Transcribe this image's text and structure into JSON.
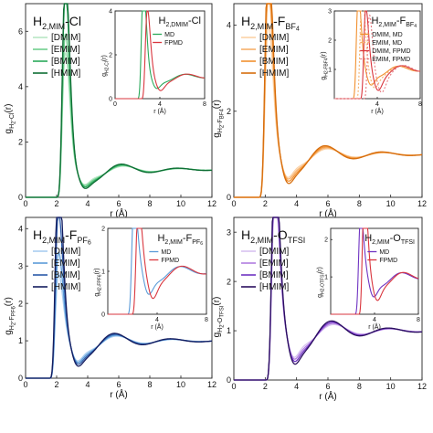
{
  "figure": {
    "panels": [
      {
        "main_title": "H2,MIM-Cl",
        "main_title_parts": [
          [
            "H",
            "",
            14
          ],
          [
            "2,MIM",
            "sub",
            9
          ],
          [
            "-Cl",
            "",
            14
          ]
        ],
        "ylabel_parts": [
          [
            "g",
            "",
            10
          ],
          [
            "H",
            "sub",
            7
          ],
          [
            "2",
            "sub2",
            6
          ],
          [
            "-Cl",
            "sub",
            7
          ],
          [
            "(r)",
            "",
            10
          ]
        ],
        "inset_title_parts": [
          [
            "H",
            "",
            11
          ],
          [
            "2,DMIM",
            "sub",
            7
          ],
          [
            "-Cl",
            "",
            11
          ]
        ],
        "inset_ylabel_parts": [
          [
            "g",
            "",
            7
          ],
          [
            "H2-Cl",
            "sub",
            5
          ],
          [
            "(r)",
            "",
            7
          ]
        ]
      },
      {
        "main_title": "H2,MIM-FBF4",
        "main_title_parts": [
          [
            "H",
            "",
            14
          ],
          [
            "2,MIM",
            "sub",
            9
          ],
          [
            "-F",
            "",
            14
          ],
          [
            "BF",
            "sub",
            9
          ],
          [
            "4",
            "sub2",
            7
          ]
        ],
        "ylabel_parts": [
          [
            "g",
            "",
            10
          ],
          [
            "H",
            "sub",
            7
          ],
          [
            "2",
            "sub2",
            6
          ],
          [
            "-F",
            "sub",
            7
          ],
          [
            "BF4",
            "sub2",
            6
          ],
          [
            "(r)",
            "",
            10
          ]
        ],
        "inset_title_parts": [
          [
            "H",
            "",
            11
          ],
          [
            "2,MIM",
            "sub",
            7
          ],
          [
            "-F",
            "",
            11
          ],
          [
            "BF",
            "sub",
            7
          ],
          [
            "4",
            "sub2",
            5
          ]
        ],
        "inset_ylabel_parts": [
          [
            "g",
            "",
            7
          ],
          [
            "H2-FBF4",
            "sub",
            5
          ],
          [
            "(r)",
            "",
            7
          ]
        ]
      },
      {
        "main_title": "H2,MIM-FPF6",
        "main_title_parts": [
          [
            "H",
            "",
            14
          ],
          [
            "2,MIM",
            "sub",
            9
          ],
          [
            "-F",
            "",
            14
          ],
          [
            "PF",
            "sub",
            9
          ],
          [
            "6",
            "sub2",
            7
          ]
        ],
        "ylabel_parts": [
          [
            "g",
            "",
            10
          ],
          [
            "H",
            "sub",
            7
          ],
          [
            "2",
            "sub2",
            6
          ],
          [
            "-F",
            "sub",
            7
          ],
          [
            "PF6",
            "sub2",
            6
          ],
          [
            "(r)",
            "",
            10
          ]
        ],
        "inset_title_parts": [
          [
            "H",
            "",
            11
          ],
          [
            "2,MIM",
            "sub",
            7
          ],
          [
            "-F",
            "",
            11
          ],
          [
            "PF",
            "sub",
            7
          ],
          [
            "6",
            "sub2",
            5
          ]
        ],
        "inset_ylabel_parts": [
          [
            "g",
            "",
            7
          ],
          [
            "H2-FPF6",
            "sub",
            5
          ],
          [
            "(r)",
            "",
            7
          ]
        ]
      },
      {
        "main_title": "H2,MIM-OTFSI",
        "main_title_parts": [
          [
            "H",
            "",
            14
          ],
          [
            "2,MIM",
            "sub",
            9
          ],
          [
            "-O",
            "",
            14
          ],
          [
            "TFSI",
            "sub",
            9
          ]
        ],
        "ylabel_parts": [
          [
            "g",
            "",
            10
          ],
          [
            "H",
            "sub",
            7
          ],
          [
            "2",
            "sub2",
            6
          ],
          [
            "-O",
            "sub",
            7
          ],
          [
            "TFSI",
            "sub2",
            6
          ],
          [
            "(r)",
            "",
            10
          ]
        ],
        "inset_title_parts": [
          [
            "H",
            "",
            11
          ],
          [
            "2,MIM",
            "sub",
            7
          ],
          [
            "-O",
            "",
            11
          ],
          [
            "TFSI",
            "sub",
            7
          ]
        ],
        "inset_ylabel_parts": [
          [
            "g",
            "",
            7
          ],
          [
            "H2-OTFSI",
            "sub",
            5
          ],
          [
            "(r)",
            "",
            7
          ]
        ]
      }
    ]
  },
  "chart_data": [
    {
      "type": "line",
      "title": "H2,MIM-Cl",
      "xlabel": "r (Å)",
      "ylabel": "gH2-Cl(r)",
      "xlim": [
        0,
        12
      ],
      "ylim": [
        0,
        7
      ],
      "xticks": [
        0,
        2,
        4,
        6,
        8,
        10,
        12
      ],
      "yticks": [
        0,
        2,
        4,
        6
      ],
      "legend_position": "top-left",
      "series": [
        {
          "name": "[DMIM]",
          "color": "#b7e6c4",
          "peak": 3.9
        },
        {
          "name": "[EMIM]",
          "color": "#6fcf8e",
          "peak": 4.5
        },
        {
          "name": "[BMIM]",
          "color": "#2aa95a",
          "peak": 6.0
        },
        {
          "name": "[HMIM]",
          "color": "#0f6e35",
          "peak": 6.5
        }
      ],
      "inset": {
        "title": "H2,DMIM-Cl",
        "xlim": [
          0,
          8
        ],
        "ylim": [
          0,
          4
        ],
        "xticks": [
          0,
          4,
          8
        ],
        "yticks": [
          0,
          2,
          4
        ],
        "xlabel": "r (Å)",
        "ylabel": "gH2-Cl(r)",
        "series": [
          {
            "name": "MD",
            "color": "#2aa95a",
            "peak": 3.9
          },
          {
            "name": "FPMD",
            "color": "#d9363e",
            "peak": 2.8
          }
        ]
      }
    },
    {
      "type": "line",
      "title": "H2,MIM-FBF4",
      "xlabel": "r (Å)",
      "ylabel": "gH2-FBF4(r)",
      "xlim": [
        0,
        12
      ],
      "ylim": [
        0,
        4.5
      ],
      "xticks": [
        0,
        2,
        4,
        6,
        8,
        10,
        12
      ],
      "yticks": [
        0,
        2,
        4
      ],
      "legend_position": "top-left",
      "series": [
        {
          "name": "[DMIM]",
          "color": "#fbd2a6",
          "peak": 2.6
        },
        {
          "name": "[EMIM]",
          "color": "#f7b06a",
          "peak": 3.3
        },
        {
          "name": "[BMIM]",
          "color": "#f1902f",
          "peak": 3.6
        },
        {
          "name": "[HMIM]",
          "color": "#d66d0d",
          "peak": 4.0
        }
      ],
      "inset": {
        "title": "H2,MIM-FBF4",
        "xlim": [
          0,
          8
        ],
        "ylim": [
          0,
          3
        ],
        "xticks": [
          4,
          8
        ],
        "yticks": [
          1,
          2,
          3
        ],
        "xlabel": "r (Å)",
        "ylabel": "gH2-FBF4(r)",
        "series": [
          {
            "name": "DMIM, MD",
            "color": "#f1902f",
            "dash": "",
            "peak": 2.3
          },
          {
            "name": "EMIM, MD",
            "color": "#f7b06a",
            "dash": "2,2",
            "peak": 2.5
          },
          {
            "name": "DMIM, FPMD",
            "color": "#d9363e",
            "dash": "",
            "peak": 1.8
          },
          {
            "name": "EMIM, FPMD",
            "color": "#e67a80",
            "dash": "2,2",
            "peak": 1.6
          }
        ]
      }
    },
    {
      "type": "line",
      "title": "H2,MIM-FPF6",
      "xlabel": "r (Å)",
      "ylabel": "gH2-FPF6(r)",
      "xlim": [
        0,
        12
      ],
      "ylim": [
        0,
        4.3
      ],
      "xticks": [
        0,
        2,
        4,
        6,
        8,
        10,
        12
      ],
      "yticks": [
        0,
        1,
        2,
        3,
        4
      ],
      "legend_position": "top-left",
      "series": [
        {
          "name": "[DMIM]",
          "color": "#a8cdf0",
          "peak": 1.4
        },
        {
          "name": "[EMIM]",
          "color": "#5b9bd8",
          "peak": 1.9
        },
        {
          "name": "[BMIM]",
          "color": "#2a5aa8",
          "peak": 2.9
        },
        {
          "name": "[HMIM]",
          "color": "#141c5e",
          "peak": 4.0
        }
      ],
      "inset": {
        "title": "H2,MIM-FPF6",
        "xlim": [
          0,
          8
        ],
        "ylim": [
          0,
          2
        ],
        "xticks": [
          4,
          8
        ],
        "yticks": [
          0,
          1,
          2
        ],
        "xlabel": "r (Å)",
        "ylabel": "gH2-FPF6(r)",
        "series": [
          {
            "name": "MD",
            "color": "#5b9bd8",
            "peak": 1.4
          },
          {
            "name": "FPMD",
            "color": "#d9363e",
            "peak": 1.3
          }
        ]
      }
    },
    {
      "type": "line",
      "title": "H2,MIM-OTFSI",
      "xlabel": "r (Å)",
      "ylabel": "gH2-OTFSI(r)",
      "xlim": [
        0,
        12
      ],
      "ylim": [
        0,
        3.3
      ],
      "xticks": [
        0,
        2,
        4,
        6,
        8,
        10,
        12
      ],
      "yticks": [
        0,
        1,
        2,
        3
      ],
      "legend_position": "top-left",
      "series": [
        {
          "name": "[DMIM]",
          "color": "#d7c2f0",
          "peak": 2.4
        },
        {
          "name": "[EMIM]",
          "color": "#b07ce0",
          "peak": 2.6
        },
        {
          "name": "[BMIM]",
          "color": "#6f33c2",
          "peak": 2.8
        },
        {
          "name": "[HMIM]",
          "color": "#2a0f5e",
          "peak": 3.0
        }
      ],
      "inset": {
        "title": "H2,MIM-OTFSI",
        "xlim": [
          0,
          8
        ],
        "ylim": [
          0,
          2.3
        ],
        "xticks": [
          4,
          8
        ],
        "yticks": [
          1,
          2
        ],
        "xlabel": "r (Å)",
        "ylabel": "gH2-OTFSI(r)",
        "series": [
          {
            "name": "MD",
            "color": "#6f33c2",
            "peak": 1.4
          },
          {
            "name": "FPMD",
            "color": "#d9363e",
            "peak": 2.2
          }
        ]
      }
    }
  ]
}
